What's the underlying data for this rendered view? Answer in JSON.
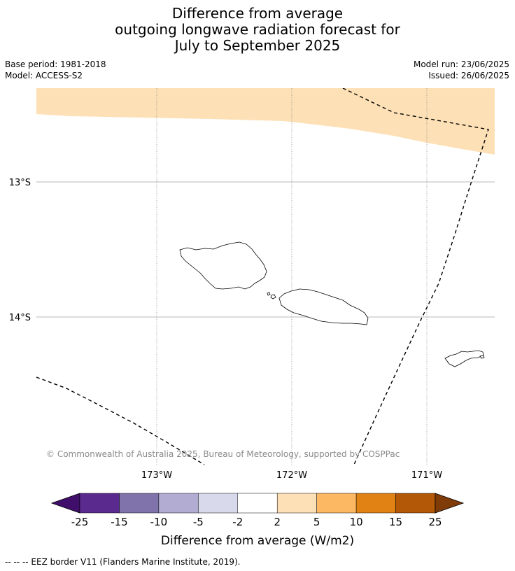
{
  "title_lines": [
    "Difference from average",
    "outgoing longwave radiation forecast for",
    "July to September 2025"
  ],
  "meta": {
    "base_period": "Base period: 1981-2018",
    "model": "Model: ACCESS-S2",
    "model_run": "Model run: 23/06/2025",
    "issued": "Issued: 26/06/2025"
  },
  "map": {
    "lat_labels": [
      "13°S",
      "14°S"
    ],
    "lon_labels": [
      "173°W",
      "172°W",
      "171°W"
    ],
    "copyright": "© Commonwealth of Australia 2025, Bureau of Meteorology, supported by COSPPac",
    "anomaly_fill_color": "#fde0b6",
    "features": [
      "Savai'i island",
      "Upolu island",
      "Tutuila island",
      "EEZ border"
    ]
  },
  "colorbar": {
    "ticks": [
      "-25",
      "-15",
      "-10",
      "-5",
      "-2",
      "2",
      "5",
      "10",
      "15",
      "25"
    ],
    "colors": [
      "#3f0f6b",
      "#5b2a8e",
      "#8073ac",
      "#b2abd2",
      "#d8daeb",
      "#ffffff",
      "#fee0b6",
      "#fdb863",
      "#e08214",
      "#b35806",
      "#7f3b08"
    ],
    "label": "Difference from average (W/m2)"
  },
  "footnote": "--  --  -- EEZ border V11 (Flanders Marine Institute, 2019)."
}
